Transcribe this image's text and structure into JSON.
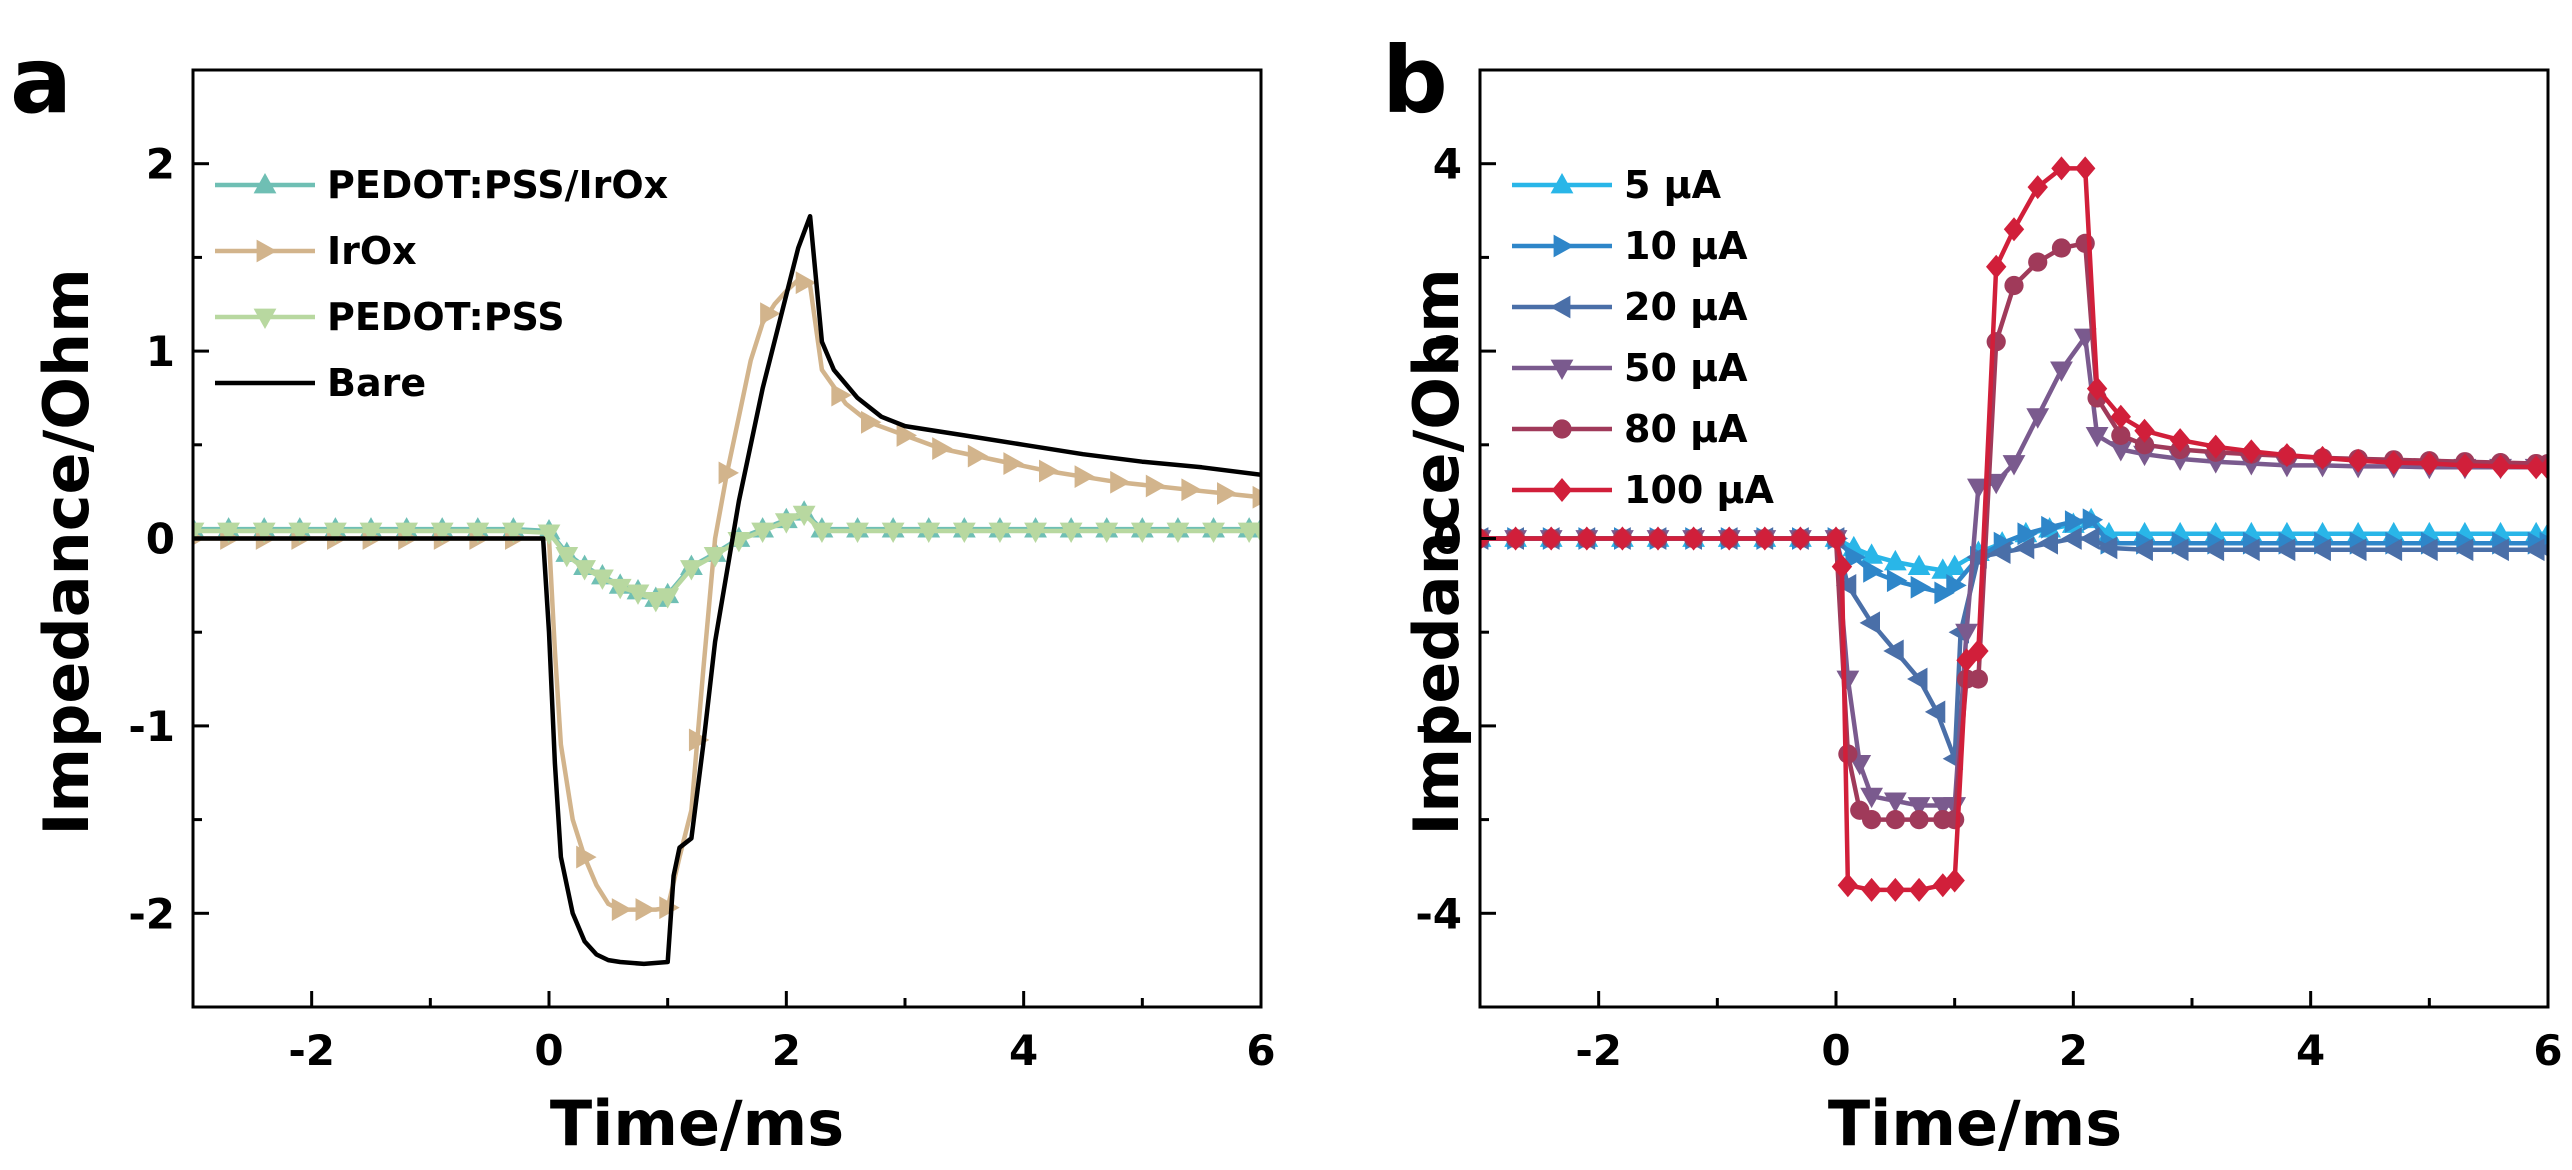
{
  "chart_data": [
    {
      "type": "line",
      "panel_label": "a",
      "xlabel": "Time/ms",
      "ylabel": "Impedance/Ohm",
      "xlim": [
        -3,
        6
      ],
      "ylim": [
        -2.5,
        2.5
      ],
      "xticks": [
        -2,
        0,
        2,
        4,
        6
      ],
      "yticks": [
        -2,
        -1,
        0,
        1,
        2
      ],
      "xtick_labels": [
        "-2",
        "0",
        "2",
        "4",
        "6"
      ],
      "ytick_labels": [
        "-2",
        "-1",
        "0",
        "1",
        "2"
      ],
      "legend_position": "top-left",
      "series": [
        {
          "name": "PEDOT:PSS/IrOx",
          "color": "#6fbfb4",
          "marker": "triangle-up",
          "x": [
            -3,
            -2.7,
            -2.4,
            -2.1,
            -1.8,
            -1.5,
            -1.2,
            -0.9,
            -0.6,
            -0.3,
            0,
            0.15,
            0.3,
            0.45,
            0.6,
            0.75,
            0.9,
            1.0,
            1.2,
            1.4,
            1.6,
            1.8,
            2.0,
            2.15,
            2.3,
            2.6,
            2.9,
            3.2,
            3.5,
            3.8,
            4.1,
            4.4,
            4.7,
            5.0,
            5.3,
            5.6,
            5.9,
            6
          ],
          "y": [
            0.05,
            0.05,
            0.05,
            0.05,
            0.05,
            0.05,
            0.05,
            0.05,
            0.05,
            0.05,
            0.04,
            -0.08,
            -0.15,
            -0.2,
            -0.25,
            -0.28,
            -0.32,
            -0.3,
            -0.15,
            -0.08,
            0.0,
            0.05,
            0.1,
            0.14,
            0.05,
            0.05,
            0.05,
            0.05,
            0.05,
            0.05,
            0.05,
            0.05,
            0.05,
            0.05,
            0.05,
            0.05,
            0.05,
            0.05
          ],
          "marker_every": 1
        },
        {
          "name": "IrOx",
          "color": "#d2b48c",
          "marker": "triangle-right",
          "x": [
            -3,
            -2.7,
            -2.4,
            -2.1,
            -1.8,
            -1.5,
            -1.2,
            -0.9,
            -0.6,
            -0.3,
            0,
            0.05,
            0.1,
            0.2,
            0.3,
            0.4,
            0.5,
            0.6,
            0.7,
            0.8,
            0.9,
            1.0,
            1.1,
            1.2,
            1.3,
            1.4,
            1.5,
            1.6,
            1.7,
            1.8,
            1.9,
            2.0,
            2.1,
            2.2,
            2.3,
            2.5,
            2.7,
            3.0,
            3.3,
            3.6,
            3.9,
            4.2,
            4.5,
            4.8,
            5.1,
            5.4,
            5.7,
            6.0
          ],
          "y": [
            0.0,
            0.0,
            0.0,
            0.0,
            0.0,
            0.0,
            0.0,
            0.0,
            0.0,
            0.0,
            0.0,
            -0.6,
            -1.1,
            -1.5,
            -1.7,
            -1.85,
            -1.95,
            -1.98,
            -1.98,
            -1.98,
            -1.98,
            -1.97,
            -1.7,
            -1.45,
            -0.7,
            0.0,
            0.35,
            0.65,
            0.95,
            1.15,
            1.25,
            1.32,
            1.38,
            1.35,
            0.9,
            0.72,
            0.62,
            0.55,
            0.48,
            0.44,
            0.4,
            0.36,
            0.33,
            0.3,
            0.28,
            0.26,
            0.24,
            0.22
          ],
          "marker_x": [
            -3,
            -2.7,
            -2.4,
            -2.1,
            -1.8,
            -1.5,
            -1.2,
            -0.9,
            -0.6,
            -0.3,
            0.3,
            0.6,
            0.8,
            1.0,
            1.25,
            1.5,
            1.85,
            2.15,
            2.45,
            2.7,
            3.0,
            3.3,
            3.6,
            3.9,
            4.2,
            4.5,
            4.8,
            5.1,
            5.4,
            5.7,
            6.0
          ]
        },
        {
          "name": "PEDOT:PSS",
          "color": "#b8d8a0",
          "marker": "triangle-down",
          "x": [
            -3,
            -2.7,
            -2.4,
            -2.1,
            -1.8,
            -1.5,
            -1.2,
            -0.9,
            -0.6,
            -0.3,
            0,
            0.15,
            0.3,
            0.45,
            0.6,
            0.75,
            0.9,
            1.0,
            1.2,
            1.4,
            1.6,
            1.8,
            2.0,
            2.15,
            2.3,
            2.6,
            2.9,
            3.2,
            3.5,
            3.8,
            4.1,
            4.4,
            4.7,
            5.0,
            5.3,
            5.6,
            5.9,
            6
          ],
          "y": [
            0.04,
            0.04,
            0.04,
            0.04,
            0.04,
            0.04,
            0.04,
            0.04,
            0.04,
            0.04,
            0.03,
            -0.09,
            -0.16,
            -0.21,
            -0.26,
            -0.29,
            -0.33,
            -0.31,
            -0.16,
            -0.09,
            -0.01,
            0.04,
            0.09,
            0.13,
            0.04,
            0.04,
            0.04,
            0.04,
            0.04,
            0.04,
            0.04,
            0.04,
            0.04,
            0.04,
            0.04,
            0.04,
            0.04,
            0.04
          ],
          "marker_every": 1
        },
        {
          "name": "Bare",
          "color": "#000000",
          "marker": "none",
          "x": [
            -3,
            -0.05,
            0,
            0.05,
            0.1,
            0.2,
            0.3,
            0.4,
            0.5,
            0.6,
            0.8,
            1.0,
            1.05,
            1.1,
            1.2,
            1.3,
            1.4,
            1.6,
            1.8,
            2.0,
            2.1,
            2.2,
            2.3,
            2.4,
            2.6,
            2.8,
            3.0,
            3.5,
            4.0,
            4.5,
            5.0,
            5.5,
            6.0
          ],
          "y": [
            0.0,
            0.0,
            -0.5,
            -1.2,
            -1.7,
            -2.0,
            -2.15,
            -2.22,
            -2.25,
            -2.26,
            -2.27,
            -2.26,
            -1.8,
            -1.65,
            -1.6,
            -1.1,
            -0.55,
            0.2,
            0.8,
            1.3,
            1.55,
            1.72,
            1.05,
            0.9,
            0.75,
            0.65,
            0.6,
            0.55,
            0.5,
            0.45,
            0.41,
            0.38,
            0.34
          ]
        }
      ]
    },
    {
      "type": "line",
      "panel_label": "b",
      "xlabel": "Time/ms",
      "ylabel": "Impedance/Ohm",
      "xlim": [
        -3,
        6
      ],
      "ylim": [
        -5,
        5
      ],
      "xticks": [
        -2,
        0,
        2,
        4,
        6
      ],
      "yticks": [
        -4,
        -2,
        0,
        2,
        4
      ],
      "xtick_labels": [
        "-2",
        "0",
        "2",
        "4",
        "6"
      ],
      "ytick_labels": [
        "-4",
        "-2",
        "0",
        "2",
        "4"
      ],
      "legend_position": "top-left",
      "series": [
        {
          "name": "5 µA",
          "color": "#29b6e8",
          "marker": "triangle-up",
          "x": [
            -3,
            -2.7,
            -2.4,
            -2.1,
            -1.8,
            -1.5,
            -1.2,
            -0.9,
            -0.6,
            -0.3,
            0,
            0.15,
            0.3,
            0.5,
            0.7,
            0.9,
            1.0,
            1.2,
            1.4,
            1.6,
            1.8,
            2.0,
            2.15,
            2.3,
            2.6,
            2.9,
            3.2,
            3.5,
            3.8,
            4.1,
            4.4,
            4.7,
            5.0,
            5.3,
            5.6,
            5.9,
            6
          ],
          "y": [
            0.0,
            0.0,
            0.0,
            0.0,
            0.0,
            0.0,
            0.0,
            0.0,
            0.0,
            0.0,
            0.0,
            -0.1,
            -0.18,
            -0.25,
            -0.3,
            -0.34,
            -0.3,
            -0.15,
            -0.05,
            0.05,
            0.1,
            0.15,
            0.2,
            0.05,
            0.05,
            0.05,
            0.05,
            0.05,
            0.05,
            0.05,
            0.05,
            0.05,
            0.05,
            0.05,
            0.05,
            0.05,
            0.05
          ]
        },
        {
          "name": "10 µA",
          "color": "#2e86c9",
          "marker": "triangle-right",
          "x": [
            -3,
            -2.7,
            -2.4,
            -2.1,
            -1.8,
            -1.5,
            -1.2,
            -0.9,
            -0.6,
            -0.3,
            0,
            0.15,
            0.3,
            0.5,
            0.7,
            0.9,
            1.0,
            1.2,
            1.4,
            1.6,
            1.8,
            2.0,
            2.15,
            2.3,
            2.6,
            2.9,
            3.2,
            3.5,
            3.8,
            4.1,
            4.4,
            4.7,
            5.0,
            5.3,
            5.6,
            5.9,
            6
          ],
          "y": [
            0.0,
            0.0,
            0.0,
            0.0,
            0.0,
            0.0,
            0.0,
            0.0,
            0.0,
            0.0,
            0.0,
            -0.2,
            -0.35,
            -0.45,
            -0.52,
            -0.58,
            -0.5,
            -0.2,
            -0.05,
            0.05,
            0.12,
            0.18,
            0.2,
            -0.05,
            -0.05,
            -0.05,
            -0.05,
            -0.05,
            -0.05,
            -0.05,
            -0.05,
            -0.05,
            -0.05,
            -0.05,
            -0.05,
            -0.05,
            -0.05
          ]
        },
        {
          "name": "20 µA",
          "color": "#4a6fa8",
          "marker": "triangle-left",
          "x": [
            -3,
            -2.7,
            -2.4,
            -2.1,
            -1.8,
            -1.5,
            -1.2,
            -0.9,
            -0.6,
            -0.3,
            0,
            0.1,
            0.3,
            0.5,
            0.7,
            0.85,
            1.0,
            1.05,
            1.2,
            1.4,
            1.6,
            1.8,
            2.0,
            2.15,
            2.3,
            2.6,
            2.9,
            3.2,
            3.5,
            3.8,
            4.1,
            4.4,
            4.7,
            5.0,
            5.3,
            5.6,
            5.9,
            6
          ],
          "y": [
            0.0,
            0.0,
            0.0,
            0.0,
            0.0,
            0.0,
            0.0,
            0.0,
            0.0,
            0.0,
            0.0,
            -0.5,
            -0.9,
            -1.2,
            -1.5,
            -1.85,
            -2.35,
            -1.0,
            -0.2,
            -0.15,
            -0.1,
            -0.05,
            0.0,
            0.0,
            -0.1,
            -0.12,
            -0.12,
            -0.12,
            -0.12,
            -0.12,
            -0.12,
            -0.12,
            -0.12,
            -0.12,
            -0.12,
            -0.12,
            -0.12,
            -0.12
          ]
        },
        {
          "name": "50 µA",
          "color": "#7a5a8e",
          "marker": "triangle-down",
          "x": [
            -3,
            -2.7,
            -2.4,
            -2.1,
            -1.8,
            -1.5,
            -1.2,
            -0.9,
            -0.6,
            -0.3,
            0,
            0.1,
            0.2,
            0.3,
            0.5,
            0.7,
            0.9,
            1.0,
            1.1,
            1.2,
            1.35,
            1.5,
            1.7,
            1.9,
            2.1,
            2.2,
            2.4,
            2.6,
            2.9,
            3.2,
            3.5,
            3.8,
            4.1,
            4.4,
            4.7,
            5.0,
            5.3,
            5.6,
            5.9,
            6
          ],
          "y": [
            0.0,
            0.0,
            0.0,
            0.0,
            0.0,
            0.0,
            0.0,
            0.0,
            0.0,
            0.0,
            0.0,
            -1.5,
            -2.4,
            -2.75,
            -2.8,
            -2.85,
            -2.85,
            -2.85,
            -1.0,
            0.55,
            0.6,
            0.8,
            1.3,
            1.8,
            2.15,
            1.1,
            0.95,
            0.9,
            0.85,
            0.82,
            0.8,
            0.78,
            0.78,
            0.77,
            0.77,
            0.76,
            0.76,
            0.76,
            0.76,
            0.76
          ]
        },
        {
          "name": "80 µA",
          "color": "#a03a5a",
          "marker": "circle",
          "x": [
            -3,
            -2.7,
            -2.4,
            -2.1,
            -1.8,
            -1.5,
            -1.2,
            -0.9,
            -0.6,
            -0.3,
            0,
            0.1,
            0.2,
            0.3,
            0.5,
            0.7,
            0.9,
            1.0,
            1.1,
            1.2,
            1.35,
            1.5,
            1.7,
            1.9,
            2.1,
            2.2,
            2.4,
            2.6,
            2.9,
            3.2,
            3.5,
            3.8,
            4.1,
            4.4,
            4.7,
            5.0,
            5.3,
            5.6,
            5.9,
            6
          ],
          "y": [
            0.0,
            0.0,
            0.0,
            0.0,
            0.0,
            0.0,
            0.0,
            0.0,
            0.0,
            0.0,
            0.0,
            -2.3,
            -2.9,
            -3.0,
            -3.0,
            -3.0,
            -3.0,
            -3.0,
            -1.5,
            -1.5,
            2.1,
            2.7,
            2.95,
            3.1,
            3.15,
            1.5,
            1.1,
            1.0,
            0.95,
            0.92,
            0.9,
            0.88,
            0.86,
            0.85,
            0.84,
            0.83,
            0.82,
            0.81,
            0.8,
            0.8
          ]
        },
        {
          "name": "100 µA",
          "color": "#d11f3a",
          "marker": "diamond",
          "x": [
            -3,
            -2.7,
            -2.4,
            -2.1,
            -1.8,
            -1.5,
            -1.2,
            -0.9,
            -0.6,
            -0.3,
            0,
            0.05,
            0.1,
            0.3,
            0.5,
            0.7,
            0.9,
            1.0,
            1.1,
            1.2,
            1.35,
            1.5,
            1.7,
            1.9,
            2.1,
            2.2,
            2.4,
            2.6,
            2.9,
            3.2,
            3.5,
            3.8,
            4.1,
            4.4,
            4.7,
            5.0,
            5.3,
            5.6,
            5.9,
            6
          ],
          "y": [
            0.0,
            0.0,
            0.0,
            0.0,
            0.0,
            0.0,
            0.0,
            0.0,
            0.0,
            0.0,
            0.0,
            -0.3,
            -3.7,
            -3.75,
            -3.75,
            -3.75,
            -3.7,
            -3.65,
            -1.3,
            -1.2,
            2.9,
            3.3,
            3.75,
            3.95,
            3.95,
            1.6,
            1.3,
            1.15,
            1.05,
            0.98,
            0.93,
            0.89,
            0.86,
            0.83,
            0.81,
            0.8,
            0.78,
            0.77,
            0.76,
            0.75
          ]
        }
      ]
    }
  ]
}
